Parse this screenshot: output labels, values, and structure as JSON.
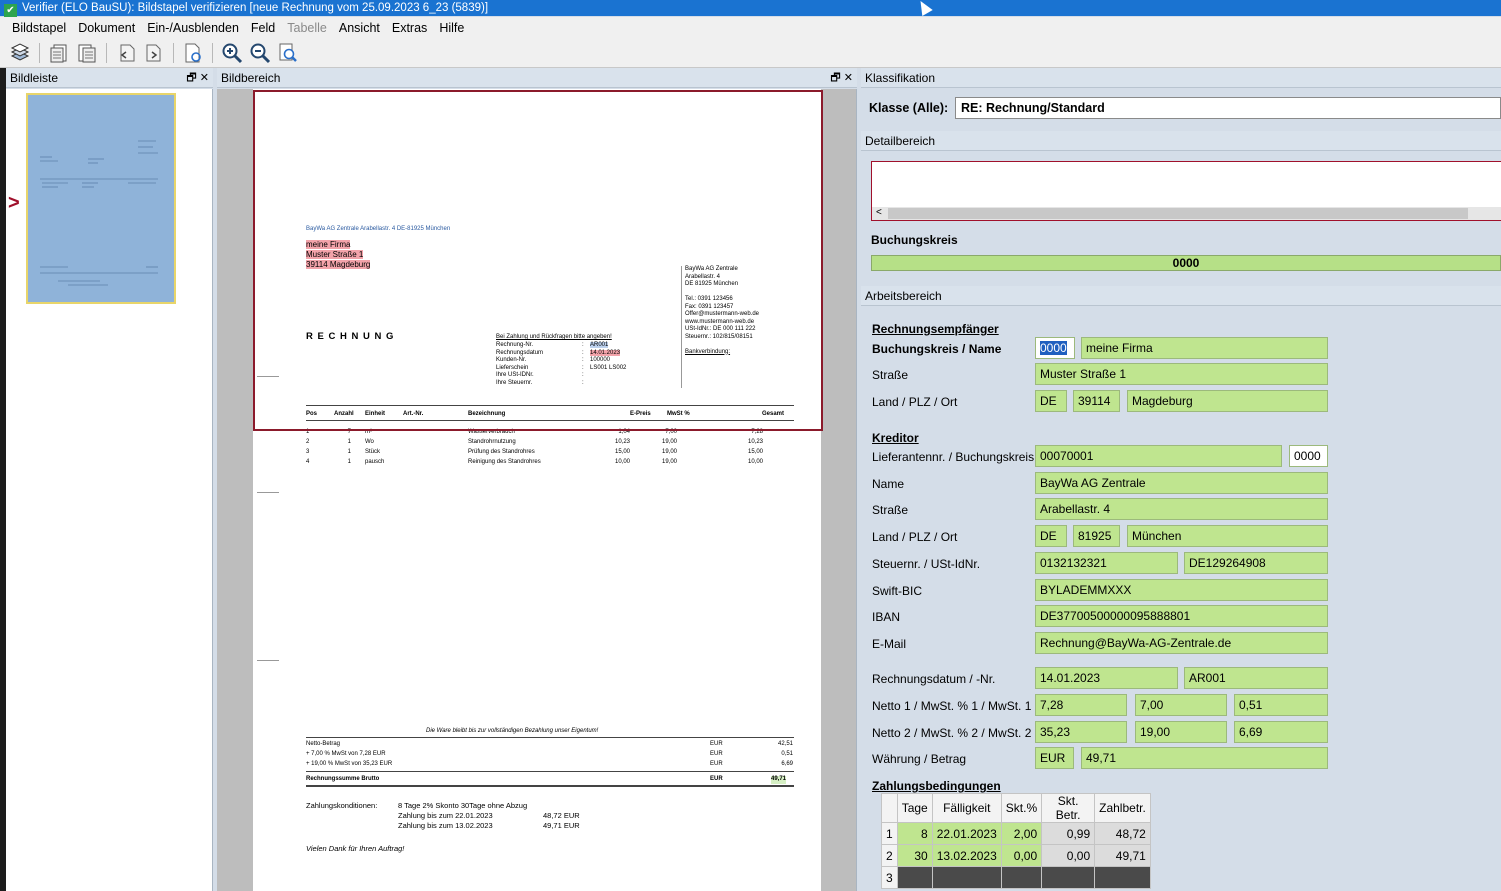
{
  "window": {
    "title": "Verifier (ELO BauSU): Bildstapel verifizieren [neue Rechnung vom 25.09.2023 6_23 (5839)]"
  },
  "menu": [
    "Bildstapel",
    "Dokument",
    "Ein-/Ausblenden",
    "Feld",
    "Tabelle",
    "Ansicht",
    "Extras",
    "Hilfe"
  ],
  "panels": {
    "bildleiste": "Bildleiste",
    "bildbereich": "Bildbereich",
    "klassifikation": "Klassifikation",
    "detailbereich": "Detailbereich",
    "arbeitsbereich": "Arbeitsbereich"
  },
  "klasse": {
    "label": "Klasse (Alle):",
    "value": "RE: Rechnung/Standard"
  },
  "detail": {
    "buchungskreis_label": "Buchungskreis",
    "buchungskreis_value": "0000"
  },
  "invoice": {
    "sender_line": "BayWa AG Zentrale      Arabellastr. 4      DE-81925 München",
    "recipient": [
      "meine Firma",
      "Muster Straße 1",
      "39114 Magdeburg"
    ],
    "title": "R E C H N U N G",
    "sender_block": [
      "BayWa AG Zentrale",
      "Arabellastr. 4",
      "DE 81925 München",
      "",
      "Tel.: 0391 123456",
      "Fax: 0391 123457",
      "Offer@mustermann-web.de",
      "www.mustermann-web.de",
      "USt-IdNr.: DE 000 111 222",
      "Steuernr.: 102/815/08151",
      "",
      "Bankverbindung:"
    ],
    "ref_heading": "Bei Zahlung und Rückfragen bitte angeben!",
    "ref_labels": [
      "Rechnung-Nr.",
      "Rechnungsdatum",
      "Kunden-Nr.",
      "Lieferschein",
      "Ihre USt-IDNr.",
      "Ihre Steuernr."
    ],
    "ref_values": [
      "AR001",
      "14.01.2023",
      "100000",
      "LS001 LS002",
      "",
      ""
    ],
    "table_headers": [
      "Pos",
      "Anzahl",
      "Einheit",
      "Art.-Nr.",
      "Bezeichnung",
      "E-Preis",
      "MwSt %",
      "Gesamt"
    ],
    "rows": [
      [
        "1",
        "7",
        "m³",
        "Wasserverbrauch",
        "1,04",
        "7,00",
        "7,28"
      ],
      [
        "2",
        "1",
        "Wo",
        "Standrohrnutzung",
        "10,23",
        "19,00",
        "10,23"
      ],
      [
        "3",
        "1",
        "Stück",
        "Prüfung des Standrohres",
        "15,00",
        "19,00",
        "15,00"
      ],
      [
        "4",
        "1",
        "pausch",
        "Reinigung des Standrohres",
        "10,00",
        "19,00",
        "10,00"
      ]
    ],
    "eigentum": "Die Ware bleibt bis zur vollständigen Bezahlung unser Eigentum!",
    "sums": [
      [
        "Netto-Betrag",
        "EUR",
        "42,51"
      ],
      [
        "+ 7,00 %  MwSt von 7,28 EUR",
        "EUR",
        "0,51"
      ],
      [
        "+ 19,00 %  MwSt von 35,23 EUR",
        "EUR",
        "6,69"
      ]
    ],
    "brutto_label": "Rechnungssumme Brutto",
    "brutto_cur": "EUR",
    "brutto_value": "49,71",
    "konditionen_label": "Zahlungskonditionen:",
    "konditionen": [
      "8 Tage 2% Skonto 30Tage ohne Abzug",
      "Zahlung bis zum 22.01.2023",
      "Zahlung bis zum 13.02.2023"
    ],
    "konditionen_amounts": [
      "48,72 EUR",
      "49,71 EUR"
    ],
    "thanks": "Vielen Dank für Ihren Auftrag!"
  },
  "form": {
    "empfaenger_title": "Rechnungsempfänger",
    "bk_name_label": "Buchungskreis / Name",
    "bk_value": "0000",
    "name_value": "meine Firma",
    "strasse_label": "Straße",
    "strasse_value": "Muster Straße 1",
    "land_label": "Land / PLZ / Ort",
    "land_value": "DE",
    "plz_value": "39114",
    "ort_value": "Magdeburg",
    "kreditor_title": "Kreditor",
    "lief_label": "Lieferantennr. / Buchungskreis",
    "lief_value": "00070001",
    "lief_bk_value": "0000",
    "k_name_label": "Name",
    "k_name_value": "BayWa AG Zentrale",
    "k_strasse_label": "Straße",
    "k_strasse_value": "Arabellastr. 4",
    "k_land_label": "Land / PLZ / Ort",
    "k_land_value": "DE",
    "k_plz_value": "81925",
    "k_ort_value": "München",
    "steuer_label": "Steuernr. / USt-IdNr.",
    "steuer_value": "0132132321",
    "ustid_value": "DE129264908",
    "swift_label": "Swift-BIC",
    "swift_value": "BYLADEMMXXX",
    "iban_label": "IBAN",
    "iban_value": "DE37700500000095888801",
    "email_label": "E-Mail",
    "email_value": "Rechnung@BayWa-AG-Zentrale.de",
    "rdatum_label": "Rechnungsdatum / -Nr.",
    "rdatum_value": "14.01.2023",
    "rnr_value": "AR001",
    "netto1_label": "Netto 1 / MwSt. % 1 / MwSt. 1",
    "netto1_values": [
      "7,28",
      "7,00",
      "0,51"
    ],
    "netto2_label": "Netto 2 / MwSt. % 2 / MwSt. 2",
    "netto2_values": [
      "35,23",
      "19,00",
      "6,69"
    ],
    "waehrung_label": "Währung / Betrag",
    "waehrung_value": "EUR",
    "betrag_value": "49,71",
    "zb_title": "Zahlungsbedingungen",
    "zb_headers": [
      "Tage",
      "Fälligkeit",
      "Skt.%",
      "Skt. Betr.",
      "Zahlbetr."
    ],
    "zb_rows": [
      [
        "1",
        "8",
        "22.01.2023",
        "2,00",
        "0,99",
        "48,72"
      ],
      [
        "2",
        "30",
        "13.02.2023",
        "0,00",
        "0,00",
        "49,71"
      ]
    ],
    "zb_empty_row": "3"
  }
}
